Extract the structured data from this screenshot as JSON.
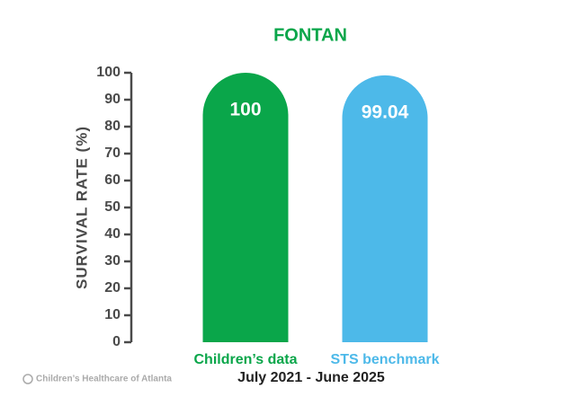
{
  "chart_data": {
    "type": "bar",
    "title": "FONTAN",
    "y_label": "SURVIVAL RATE (%)",
    "x_label": "July 2021 - June 2025",
    "categories": [
      "Children’s data",
      "STS benchmark"
    ],
    "values": [
      100,
      99.04
    ],
    "colors": [
      "#0aa64a",
      "#4db9e9"
    ],
    "title_color": "#0aa64a",
    "ylim": [
      0,
      100
    ],
    "yticks": [
      0,
      10,
      20,
      30,
      40,
      50,
      60,
      70,
      80,
      90,
      100
    ],
    "footer": "Children’s Healthcare of Atlanta"
  }
}
